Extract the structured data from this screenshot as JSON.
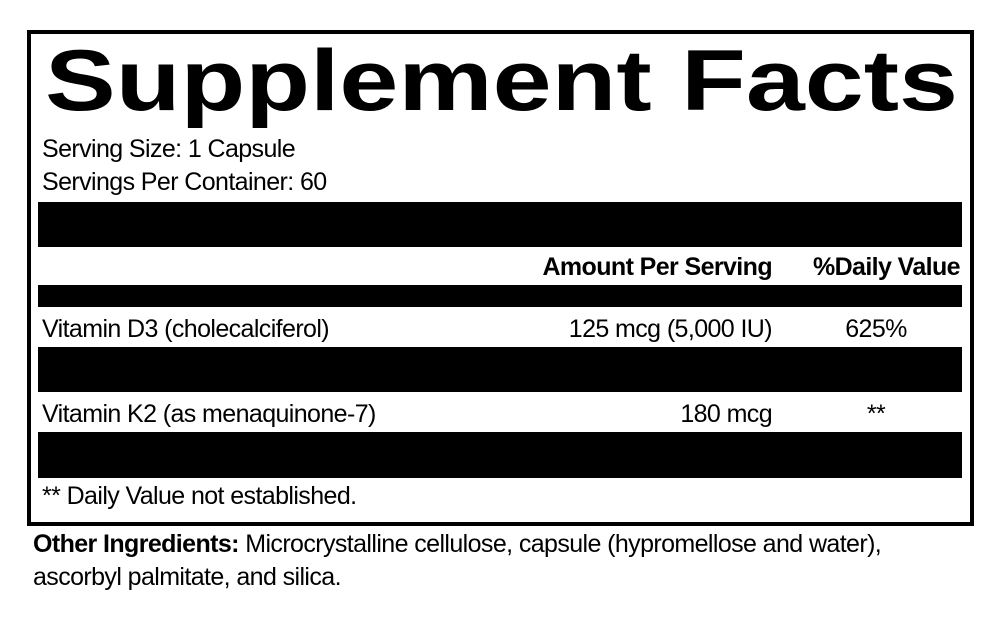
{
  "title": "Supplement Facts",
  "serving_size": "Serving Size: 1 Capsule",
  "servings_per_container": "Servings Per Container: 60",
  "table": {
    "header": [
      "Amount Per Serving",
      "%Daily Value"
    ],
    "rows": [
      [
        "Vitamin D3 (cholecalciferol)",
        "125 mcg (5,000 IU)",
        "625%"
      ],
      [
        "Vitamin K2 (as menaquinone-7)",
        "180 mcg",
        "**"
      ]
    ]
  },
  "footnote": "** Daily Value not established.",
  "other_ingredients": {
    "label": "Other Ingredients:",
    "text": "Microcrystalline cellulose, capsule (hypromellose and water), ascorbyl palmitate, and silica."
  }
}
